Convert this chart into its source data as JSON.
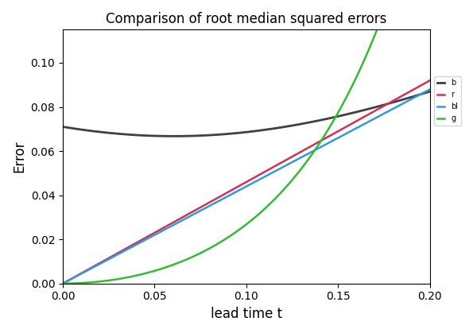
{
  "title": "Comparison of root median squared errors",
  "xlabel": "lead time t",
  "ylabel": "Error",
  "xlim": [
    0.0,
    0.2
  ],
  "ylim": [
    0.0,
    0.115
  ],
  "t_max": 0.2,
  "n_points": 1000,
  "curves": {
    "black": {
      "color": "#404040",
      "lw": 2.0
    },
    "red": {
      "color": "#cc3355",
      "lw": 1.8
    },
    "blue": {
      "color": "#3399dd",
      "lw": 1.8
    },
    "green": {
      "color": "#33bb33",
      "lw": 1.8
    }
  },
  "black_params": {
    "A": 0.005041,
    "B": -0.01936,
    "C": 0.16
  },
  "red_params": {
    "type": "linear",
    "slope": 0.46
  },
  "blue_params": {
    "type": "linear",
    "slope": 0.44
  },
  "green_params": {
    "type": "sinh2",
    "C": 0.034,
    "alpha": 8.0
  },
  "legend": {
    "visible": true,
    "loc": "outside_right",
    "labels": [
      "b",
      "r",
      "bl",
      "g"
    ],
    "fontsize": 7,
    "frameon": true
  },
  "figsize": [
    5.95,
    4.19
  ],
  "dpi": 100,
  "xticks": [
    0.0,
    0.05,
    0.1,
    0.15,
    0.2
  ],
  "yticks": [
    0.0,
    0.02,
    0.04,
    0.06,
    0.08,
    0.1
  ]
}
